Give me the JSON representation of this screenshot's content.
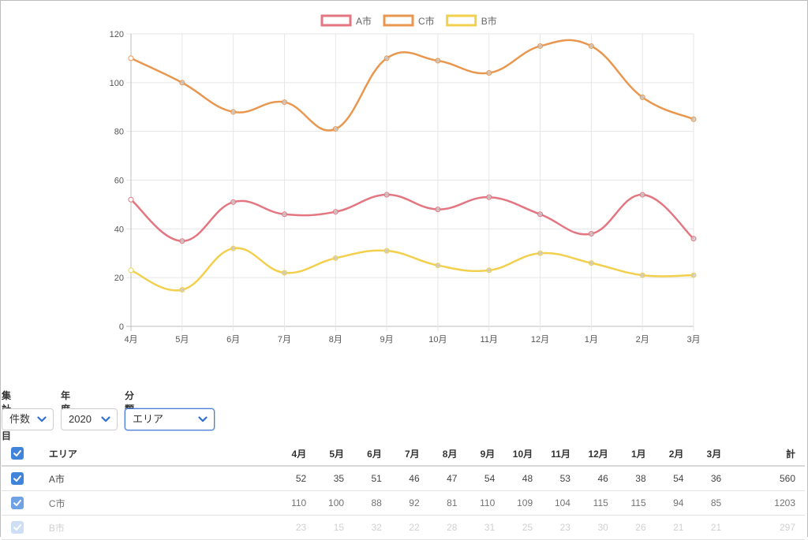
{
  "chart_data": {
    "type": "line",
    "categories": [
      "4月",
      "5月",
      "6月",
      "7月",
      "8月",
      "9月",
      "10月",
      "11月",
      "12月",
      "1月",
      "2月",
      "3月"
    ],
    "series": [
      {
        "name": "A市",
        "color": "#e37681",
        "values": [
          52,
          35,
          51,
          46,
          47,
          54,
          48,
          53,
          46,
          38,
          54,
          36
        ]
      },
      {
        "name": "C市",
        "color": "#e9974f",
        "values": [
          110,
          100,
          88,
          92,
          81,
          110,
          109,
          104,
          115,
          115,
          94,
          85
        ]
      },
      {
        "name": "B市",
        "color": "#f2d04e",
        "values": [
          23,
          15,
          32,
          22,
          28,
          31,
          25,
          23,
          30,
          26,
          21,
          21
        ]
      }
    ],
    "ylim": [
      0,
      120
    ],
    "yticks": [
      0,
      20,
      40,
      60,
      80,
      100,
      120
    ],
    "legend_position": "top-center",
    "grid": true
  },
  "filters": {
    "item": {
      "label": "集計項目",
      "value": "件数"
    },
    "year": {
      "label": "年度",
      "value": "2020"
    },
    "category": {
      "label": "分類",
      "value": "エリア"
    }
  },
  "table": {
    "headers": {
      "area": "エリア",
      "months": [
        "4月",
        "5月",
        "6月",
        "7月",
        "8月",
        "9月",
        "10月",
        "11月",
        "12月",
        "1月",
        "2月",
        "3月"
      ],
      "total": "計"
    },
    "rows": [
      {
        "area": "A市",
        "values": [
          52,
          35,
          51,
          46,
          47,
          54,
          48,
          53,
          46,
          38,
          54,
          36
        ],
        "total": 560
      },
      {
        "area": "C市",
        "values": [
          110,
          100,
          88,
          92,
          81,
          110,
          109,
          104,
          115,
          115,
          94,
          85
        ],
        "total": 1203
      },
      {
        "area": "B市",
        "values": [
          23,
          15,
          32,
          22,
          28,
          31,
          25,
          23,
          30,
          26,
          21,
          21
        ],
        "total": 297
      }
    ]
  }
}
